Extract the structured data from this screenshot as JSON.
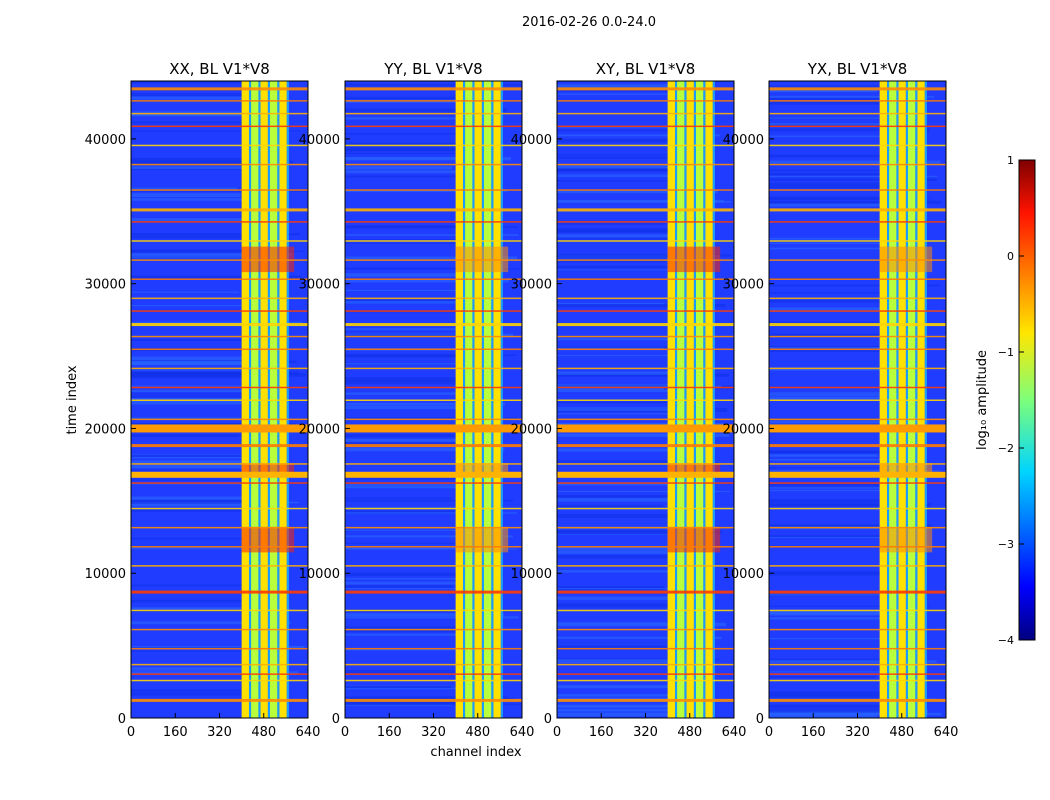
{
  "figure": {
    "suptitle": "2016-02-26 0.0-24.0"
  },
  "chart_data": [
    {
      "type": "heatmap",
      "title": "XX, BL V1*V8",
      "xlabel": "channel index",
      "ylabel": "time index",
      "xlim": [
        0,
        640
      ],
      "ylim": [
        0,
        44000
      ],
      "xticks": [
        "0",
        "160",
        "320",
        "480",
        "640"
      ],
      "yticks": [
        "0",
        "10000",
        "20000",
        "30000",
        "40000"
      ],
      "colormap": "jet",
      "color_range": [
        -4,
        1
      ]
    },
    {
      "type": "heatmap",
      "title": "YY, BL V1*V8",
      "xlabel": "channel index",
      "ylabel": "time index",
      "xlim": [
        0,
        640
      ],
      "ylim": [
        0,
        44000
      ],
      "xticks": [
        "0",
        "160",
        "320",
        "480",
        "640"
      ],
      "yticks": [
        "0",
        "10000",
        "20000",
        "30000",
        "40000"
      ],
      "colormap": "jet",
      "color_range": [
        -4,
        1
      ]
    },
    {
      "type": "heatmap",
      "title": "XY, BL V1*V8",
      "xlabel": "channel index",
      "ylabel": "time index",
      "xlim": [
        0,
        640
      ],
      "ylim": [
        0,
        44000
      ],
      "xticks": [
        "0",
        "160",
        "320",
        "480",
        "640"
      ],
      "yticks": [
        "0",
        "10000",
        "20000",
        "30000",
        "40000"
      ],
      "colormap": "jet",
      "color_range": [
        -4,
        1
      ]
    },
    {
      "type": "heatmap",
      "title": "YX, BL V1*V8",
      "xlabel": "channel index",
      "ylabel": "time index",
      "xlim": [
        0,
        640
      ],
      "ylim": [
        0,
        44000
      ],
      "xticks": [
        "0",
        "160",
        "320",
        "480",
        "640"
      ],
      "yticks": [
        "0",
        "10000",
        "20000",
        "30000",
        "40000"
      ],
      "colormap": "jet",
      "color_range": [
        -4,
        1
      ]
    }
  ],
  "colorbar": {
    "label": "log₁₀ amplitude",
    "ticks": [
      "1",
      "0",
      "−1",
      "−2",
      "−3",
      "−4"
    ],
    "range": [
      -4,
      1
    ]
  },
  "axis_labels": {
    "x": "channel index",
    "y": "time index"
  }
}
